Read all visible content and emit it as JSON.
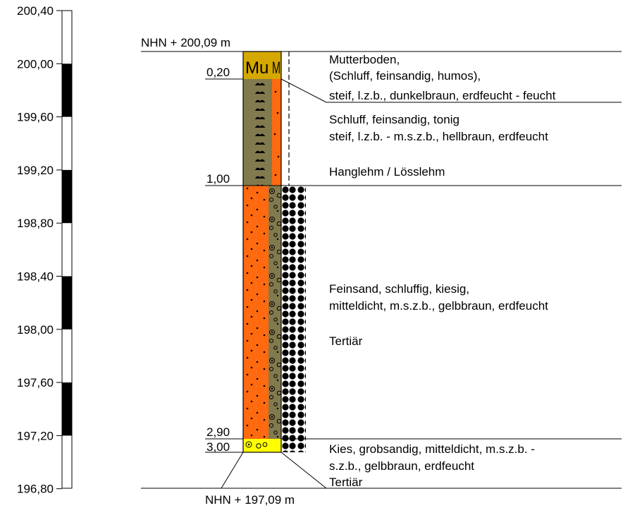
{
  "scale": {
    "tick_labels": [
      "200,40",
      "200,00",
      "199,60",
      "199,20",
      "198,80",
      "198,40",
      "198,00",
      "197,60",
      "197,20",
      "196,80"
    ]
  },
  "elevations": {
    "top": "NHN + 200,09 m",
    "bottom": "NHN + 197,09 m"
  },
  "depth_labels": [
    "0,20",
    "1,00",
    "2,90",
    "3,00"
  ],
  "column": {
    "mu_label": "Mu",
    "mu_label_side": "M"
  },
  "colors": {
    "mutterboden": "#d4a800",
    "schluff": "#807a4e",
    "feinsand": "#ff6a10",
    "kies": "#ffff00"
  },
  "layers": [
    {
      "lines": [
        "Mutterboden,",
        "(Schluff, feinsandig, humos),",
        "steif, l.z.b., dunkelbraun, erdfeucht - feucht"
      ]
    },
    {
      "lines": [
        "Schluff, feinsandig, tonig",
        "steif, l.z.b. - m.s.z.b., hellbraun, erdfeucht",
        "",
        "Hanglehm / Lösslehm"
      ]
    },
    {
      "lines": [
        "Feinsand, schluffig, kiesig,",
        "mitteldicht, m.s.z.b., gelbbraun, erdfeucht",
        "",
        "Tertiär"
      ]
    },
    {
      "lines": [
        "Kies, grobsandig, mitteldicht, m.s.z.b. -",
        "s.z.b., gelbbraun, erdfeucht",
        "Tertiär"
      ]
    }
  ]
}
